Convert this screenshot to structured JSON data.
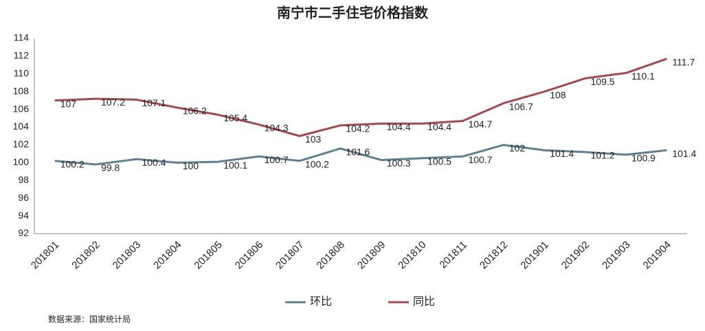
{
  "chart_data": {
    "type": "line",
    "title": "南宁市二手住宅价格指数",
    "categories": [
      "201801",
      "201802",
      "201803",
      "201804",
      "201805",
      "201806",
      "201807",
      "201808",
      "201809",
      "201810",
      "201811",
      "201812",
      "201901",
      "201902",
      "201903",
      "201904"
    ],
    "series": [
      {
        "name": "环比",
        "color": "#5b7f95",
        "values": [
          100.2,
          99.8,
          100.4,
          100,
          100.1,
          100.7,
          100.2,
          101.6,
          100.3,
          100.5,
          100.7,
          102,
          101.4,
          101.2,
          100.9,
          101.4
        ]
      },
      {
        "name": "同比",
        "color": "#a5474e",
        "values": [
          107,
          107.2,
          107.1,
          106.2,
          105.4,
          104.3,
          103,
          104.2,
          104.4,
          104.4,
          104.7,
          106.7,
          108,
          109.5,
          110.1,
          111.7
        ]
      }
    ],
    "ylim": [
      92,
      114
    ],
    "yticks": [
      92,
      94,
      96,
      98,
      100,
      102,
      104,
      106,
      108,
      110,
      112,
      114
    ],
    "grid": false,
    "legend": "bottom",
    "source": "数据来源：国家统计局"
  }
}
